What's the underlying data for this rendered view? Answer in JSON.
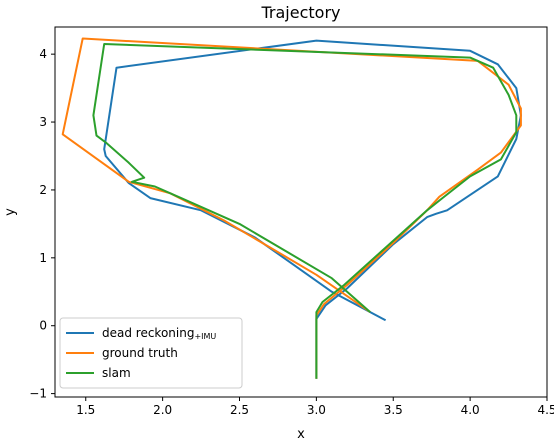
{
  "chart_data": {
    "type": "line",
    "title": "Trajectory",
    "xlabel": "x",
    "ylabel": "y",
    "xlim": [
      1.3,
      4.5
    ],
    "ylim": [
      -1.05,
      4.4
    ],
    "xticks": [
      "1.5",
      "2.0",
      "2.5",
      "3.0",
      "3.5",
      "4.0",
      "4.5"
    ],
    "yticks": [
      "−1",
      "0",
      "1",
      "2",
      "3",
      "4"
    ],
    "grid": false,
    "legend_position": "lower-left",
    "series": [
      {
        "name": "dead reckoning",
        "name_suffix": "+IMU",
        "color": "#1f77b4",
        "x": [
          3.0,
          3.0,
          3.06,
          3.2,
          3.5,
          3.72,
          3.78,
          3.85,
          4.18,
          4.3,
          4.33,
          4.3,
          4.18,
          4.0,
          3.0,
          1.7,
          1.62,
          1.63,
          1.78,
          1.92,
          2.25,
          2.6,
          2.85,
          3.1,
          3.45
        ],
        "y": [
          -0.78,
          0.1,
          0.3,
          0.55,
          1.2,
          1.6,
          1.65,
          1.7,
          2.2,
          2.75,
          3.1,
          3.5,
          3.85,
          4.05,
          4.2,
          3.8,
          2.6,
          2.5,
          2.1,
          1.88,
          1.7,
          1.3,
          0.9,
          0.5,
          0.08
        ]
      },
      {
        "name": "ground truth",
        "color": "#ff7f0e",
        "x": [
          3.0,
          3.0,
          3.05,
          3.2,
          3.5,
          3.72,
          3.8,
          4.05,
          4.2,
          4.33,
          4.33,
          4.25,
          4.05,
          1.48,
          1.35,
          1.78,
          2.05,
          2.4,
          2.7,
          3.0,
          3.35
        ],
        "y": [
          -0.78,
          0.15,
          0.32,
          0.6,
          1.22,
          1.7,
          1.9,
          2.3,
          2.55,
          2.95,
          3.2,
          3.55,
          3.9,
          4.23,
          2.82,
          2.12,
          1.95,
          1.55,
          1.15,
          0.75,
          0.2
        ],
        "note_color_alt": "#2ca02c"
      },
      {
        "name": "slam",
        "color": "#2ca02c",
        "x": [
          3.0,
          3.0,
          3.04,
          3.18,
          3.45,
          3.72,
          3.82,
          4.0,
          4.2,
          4.3,
          4.3,
          4.25,
          4.15,
          4.0,
          1.62,
          1.55,
          1.57,
          1.63,
          1.78,
          1.88,
          1.8,
          1.95,
          2.1,
          2.5,
          2.8,
          3.1,
          3.35
        ],
        "y": [
          -0.78,
          0.2,
          0.35,
          0.6,
          1.15,
          1.7,
          1.88,
          2.2,
          2.45,
          2.85,
          3.1,
          3.4,
          3.8,
          3.95,
          4.15,
          3.1,
          2.8,
          2.7,
          2.4,
          2.18,
          2.12,
          2.05,
          1.9,
          1.5,
          1.1,
          0.7,
          0.2
        ]
      }
    ]
  }
}
